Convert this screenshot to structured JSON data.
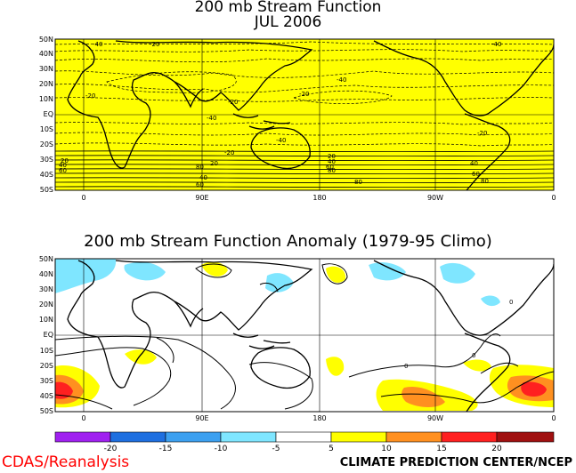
{
  "top_map": {
    "title_line1": "200 mb Stream Function",
    "title_line2": "JUL 2006",
    "background_color": "#ffff00",
    "contour_labels": [
      "-40",
      "-20",
      "-20",
      "-40",
      "-20",
      "-40",
      "-40",
      "-20",
      "-20",
      "-40",
      "-20",
      "20",
      "40",
      "60",
      "80",
      "20",
      "40",
      "60",
      "80",
      "20",
      "40",
      "60",
      "80",
      "40",
      "60",
      "80"
    ]
  },
  "bottom_map": {
    "title": "200 mb Stream Function Anomaly (1979-95 Climo)",
    "contour_labels": [
      "0",
      "0",
      "0"
    ]
  },
  "lat_labels": [
    "50N",
    "40N",
    "30N",
    "20N",
    "10N",
    "EQ",
    "10S",
    "20S",
    "30S",
    "40S",
    "50S"
  ],
  "lon_labels": [
    "0",
    "90E",
    "180",
    "90W",
    "0"
  ],
  "legend": {
    "labels": [
      "-20",
      "-15",
      "-10",
      "-5",
      "5",
      "10",
      "15",
      "20"
    ],
    "colors": [
      "#a020f0",
      "#1e6fe0",
      "#3ca0f0",
      "#7fe6ff",
      "#ffffff",
      "#ffff00",
      "#ff9020",
      "#ff2020",
      "#a01010"
    ]
  },
  "credits": {
    "left": "CDAS/Reanalysis",
    "right": "CLIMATE PREDICTION CENTER/NCEP"
  }
}
